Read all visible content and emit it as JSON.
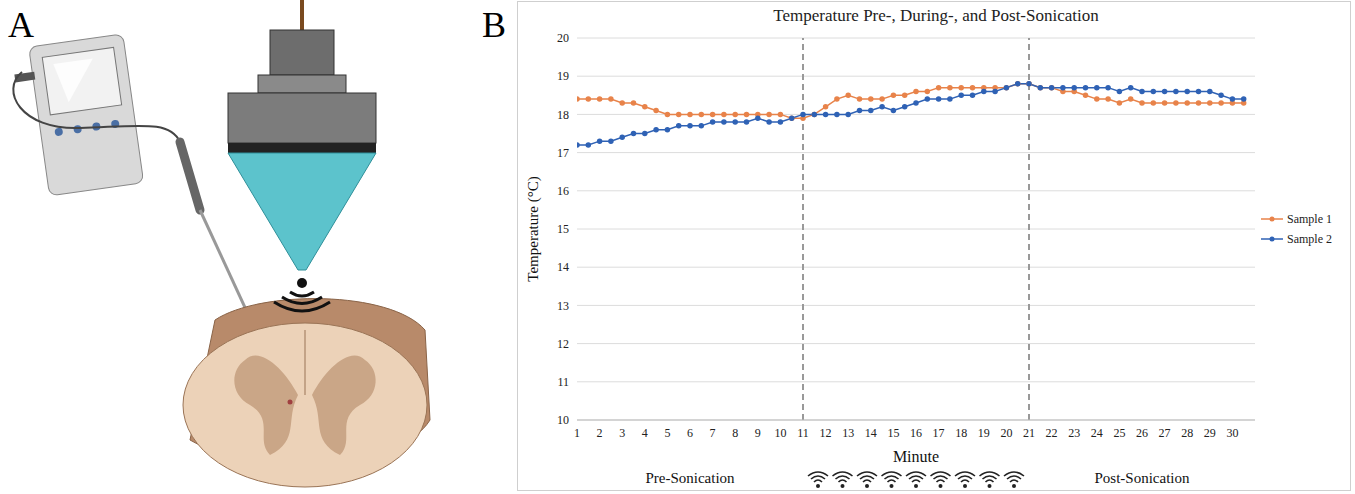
{
  "panel_labels": [
    "A",
    "B"
  ],
  "chart_data": {
    "type": "line",
    "title": "Temperature Pre-, During-, and Post-Sonication",
    "x_label": "Minute",
    "y_label": "Temperature (°C)",
    "x": [
      1,
      1.5,
      2,
      2.5,
      3,
      3.5,
      4,
      4.5,
      5,
      5.5,
      6,
      6.5,
      7,
      7.5,
      8,
      8.5,
      9,
      9.5,
      10,
      10.5,
      11,
      11.5,
      12,
      12.5,
      13,
      13.5,
      14,
      14.5,
      15,
      15.5,
      16,
      16.5,
      17,
      17.5,
      18,
      18.5,
      19,
      19.5,
      20,
      20.5,
      21,
      21.5,
      22,
      22.5,
      23,
      23.5,
      24,
      24.5,
      25,
      25.5,
      26,
      26.5,
      27,
      27.5,
      28,
      28.5,
      29,
      29.5,
      30,
      30.5
    ],
    "series": [
      {
        "name": "Sample 1",
        "color": "#e8834a",
        "marker": "circle",
        "values": [
          18.4,
          18.4,
          18.4,
          18.4,
          18.3,
          18.3,
          18.2,
          18.1,
          18.0,
          18.0,
          18.0,
          18.0,
          18.0,
          18.0,
          18.0,
          18.0,
          18.0,
          18.0,
          18.0,
          17.9,
          17.9,
          18.0,
          18.2,
          18.4,
          18.5,
          18.4,
          18.4,
          18.4,
          18.5,
          18.5,
          18.6,
          18.6,
          18.7,
          18.7,
          18.7,
          18.7,
          18.7,
          18.7,
          18.7,
          18.8,
          18.8,
          18.7,
          18.7,
          18.6,
          18.6,
          18.5,
          18.4,
          18.4,
          18.3,
          18.4,
          18.3,
          18.3,
          18.3,
          18.3,
          18.3,
          18.3,
          18.3,
          18.3,
          18.3,
          18.3
        ]
      },
      {
        "name": "Sample 2",
        "color": "#2f62b5",
        "marker": "circle",
        "values": [
          17.2,
          17.2,
          17.3,
          17.3,
          17.4,
          17.5,
          17.5,
          17.6,
          17.6,
          17.7,
          17.7,
          17.7,
          17.8,
          17.8,
          17.8,
          17.8,
          17.9,
          17.8,
          17.8,
          17.9,
          18.0,
          18.0,
          18.0,
          18.0,
          18.0,
          18.1,
          18.1,
          18.2,
          18.1,
          18.2,
          18.3,
          18.4,
          18.4,
          18.4,
          18.5,
          18.5,
          18.6,
          18.6,
          18.7,
          18.8,
          18.8,
          18.7,
          18.7,
          18.7,
          18.7,
          18.7,
          18.7,
          18.7,
          18.6,
          18.7,
          18.6,
          18.6,
          18.6,
          18.6,
          18.6,
          18.6,
          18.6,
          18.5,
          18.4,
          18.4
        ]
      }
    ],
    "xlim": [
      1,
      31
    ],
    "xticks": [
      1,
      2,
      3,
      4,
      5,
      6,
      7,
      8,
      9,
      10,
      11,
      12,
      13,
      14,
      15,
      16,
      17,
      18,
      19,
      20,
      21,
      22,
      23,
      24,
      25,
      26,
      27,
      28,
      29,
      30
    ],
    "ylim": [
      10,
      20
    ],
    "yticks": [
      10,
      11,
      12,
      13,
      14,
      15,
      16,
      17,
      18,
      19,
      20
    ],
    "grid": true,
    "legend": "right",
    "vlines": [
      11,
      21
    ],
    "annotations": [
      "Pre-Sonication",
      "Post-Sonication"
    ]
  }
}
